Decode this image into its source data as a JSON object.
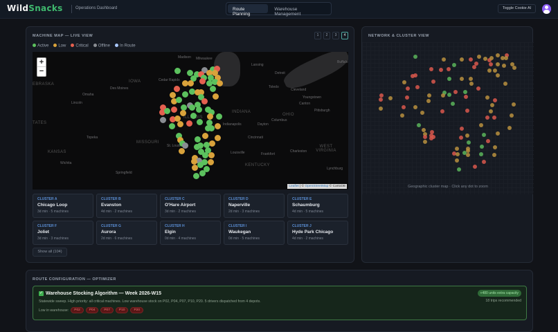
{
  "header": {
    "logo_part1": "Wild",
    "logo_part2": "Snacks",
    "subtitle": "Operations Dashboard",
    "tabs": [
      {
        "label": "Route Planning",
        "active": true
      },
      {
        "label": "Warehouse Management",
        "active": false
      }
    ],
    "toggle_label": "Toggle Cookie AI",
    "avatar_icon": "user-avatar-icon"
  },
  "map_panel": {
    "title": "MACHINE MAP — LIVE VIEW",
    "legend": [
      {
        "label": "Active",
        "color": "#5cc15e"
      },
      {
        "label": "Low",
        "color": "#d9a23b"
      },
      {
        "label": "Critical",
        "color": "#e5604f"
      },
      {
        "label": "Offline",
        "color": "#8a8d93"
      },
      {
        "label": "In Route",
        "color": "#a9c8ff"
      }
    ],
    "pages": [
      "1",
      "2",
      "3",
      "4"
    ],
    "active_page": "4",
    "zoom_in": "+",
    "zoom_out": "−",
    "map_labels": {
      "nebraska": "EBRASKA",
      "iowa": "IOWA",
      "states": "TATES",
      "kansas": "KANSAS",
      "missouri": "MISSOURI",
      "illinois": "ILLINOIS",
      "indiana": "INDIANA",
      "ohio": "OHIO",
      "kentucky": "KENTUCKY",
      "west_virginia": "WEST VIRGINIA",
      "madison": "Madison",
      "milwaukee": "Milwaukee",
      "lansing": "Lansing",
      "detroit": "Detroit",
      "buffalo": "Buffalo",
      "cedar_rapids": "Cedar Rapids",
      "des_moines": "Des Moines",
      "omaha": "Omaha",
      "lincoln": "Lincoln",
      "toledo": "Toledo",
      "cleveland": "Cleveland",
      "youngstown": "Youngstown",
      "canton": "Canton",
      "pittsburgh": "Pittsburgh",
      "columbus": "Columbus",
      "dayton": "Dayton",
      "indianapolis": "Indianapolis",
      "cincinnati": "Cincinnati",
      "topeka": "Topeka",
      "st_louis": "St. Louis",
      "louisville": "Louisville",
      "frankfort": "Frankfort",
      "charleston": "Charleston",
      "wichita": "Wichita",
      "springfield": "Springfield",
      "lynchburg": "Lynchburg"
    },
    "attribution": {
      "leaflet": "Leaflet",
      "sep": " | © ",
      "osm": "OpenStreetMap",
      "carto": " © CartoDB"
    },
    "clusters": [
      {
        "key": "CLUSTER A",
        "name": "Chicago Loop",
        "meta": "3d min · 5 machines"
      },
      {
        "key": "CLUSTER B",
        "name": "Evanston",
        "meta": "4d min · 2 machines"
      },
      {
        "key": "CLUSTER C",
        "name": "O'Hare Airport",
        "meta": "3d min · 2 machines"
      },
      {
        "key": "CLUSTER D",
        "name": "Naperville",
        "meta": "2d min · 3 machines"
      },
      {
        "key": "CLUSTER E",
        "name": "Schaumburg",
        "meta": "4d min · 5 machines"
      },
      {
        "key": "CLUSTER F",
        "name": "Joliet",
        "meta": "3d min · 3 machines"
      },
      {
        "key": "CLUSTER G",
        "name": "Aurora",
        "meta": "2d min · 6 machines"
      },
      {
        "key": "CLUSTER H",
        "name": "Elgin",
        "meta": "0d min · 4 machines"
      },
      {
        "key": "CLUSTER I",
        "name": "Waukegan",
        "meta": "0d min · 5 machines"
      },
      {
        "key": "CLUSTER J",
        "name": "Hyde Park Chicago",
        "meta": "4d min · 2 machines"
      }
    ],
    "show_all": "Show all (104)"
  },
  "network_panel": {
    "title": "NETWORK & CLUSTER VIEW",
    "caption": "Geographic cluster map · Click any dot to zoom"
  },
  "route_panel": {
    "title": "ROUTE CONFIGURATION — OPTIMIZER",
    "algorithm": {
      "check_icon": "check-icon",
      "title": "Warehouse Stocking Algorithm — Week 2026-W15",
      "description": "Statewide sweep. High priority: all critical machines. Low warehouse stock on P02, P04, P07, P10, P20. 5 drivers dispatched from 4 depots.",
      "capacity_badge": "+480 units extra capacity",
      "trips": "18 trips recommended",
      "low_label": "Low in warehouse:",
      "low_items": [
        "P02",
        "P04",
        "P07",
        "P10",
        "P20"
      ]
    }
  }
}
